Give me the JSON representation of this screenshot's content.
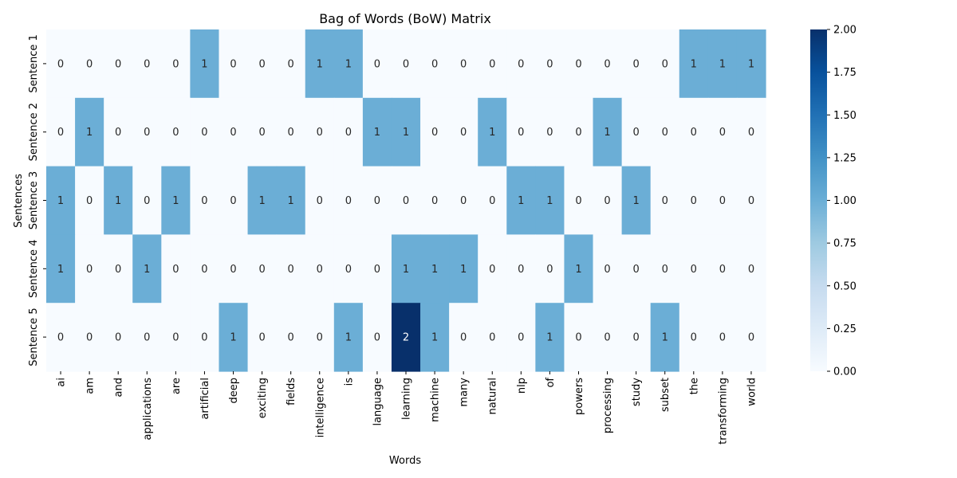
{
  "chart_data": {
    "type": "heatmap",
    "title": "Bag of Words (BoW) Matrix",
    "xlabel": "Words",
    "ylabel": "Sentences",
    "columns": [
      "ai",
      "am",
      "and",
      "applications",
      "are",
      "artificial",
      "deep",
      "exciting",
      "fields",
      "intelligence",
      "is",
      "language",
      "learning",
      "machine",
      "many",
      "natural",
      "nlp",
      "of",
      "powers",
      "processing",
      "study",
      "subset",
      "the",
      "transforming",
      "world"
    ],
    "rows": [
      "Sentence 1",
      "Sentence 2",
      "Sentence 3",
      "Sentence 4",
      "Sentence 5"
    ],
    "values": [
      [
        0,
        0,
        0,
        0,
        0,
        1,
        0,
        0,
        0,
        1,
        1,
        0,
        0,
        0,
        0,
        0,
        0,
        0,
        0,
        0,
        0,
        0,
        1,
        1,
        1
      ],
      [
        0,
        1,
        0,
        0,
        0,
        0,
        0,
        0,
        0,
        0,
        0,
        1,
        1,
        0,
        0,
        1,
        0,
        0,
        0,
        1,
        0,
        0,
        0,
        0,
        0
      ],
      [
        1,
        0,
        1,
        0,
        1,
        0,
        0,
        1,
        1,
        0,
        0,
        0,
        0,
        0,
        0,
        0,
        1,
        1,
        0,
        0,
        1,
        0,
        0,
        0,
        0
      ],
      [
        1,
        0,
        0,
        1,
        0,
        0,
        0,
        0,
        0,
        0,
        0,
        0,
        1,
        1,
        1,
        0,
        0,
        0,
        1,
        0,
        0,
        0,
        0,
        0,
        0
      ],
      [
        0,
        0,
        0,
        0,
        0,
        0,
        1,
        0,
        0,
        0,
        1,
        0,
        2,
        1,
        0,
        0,
        0,
        1,
        0,
        0,
        0,
        1,
        0,
        0,
        0
      ]
    ],
    "colormap": "Blues",
    "colorbar": {
      "min": 0,
      "max": 2,
      "ticks": [
        "0.00",
        "0.25",
        "0.50",
        "0.75",
        "1.00",
        "1.25",
        "1.50",
        "1.75",
        "2.00"
      ]
    },
    "colors": {
      "low": "#f7fbff",
      "mid": "#6baed6",
      "high": "#08306b"
    }
  }
}
